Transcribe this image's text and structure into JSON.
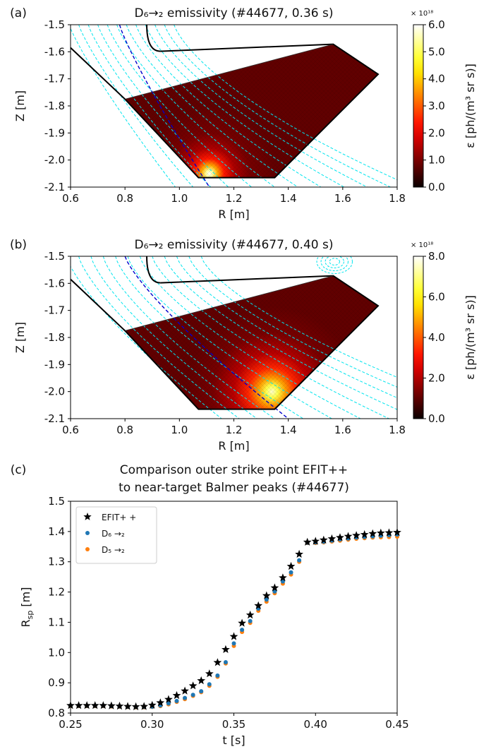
{
  "chart_data": [
    {
      "panel_label": "(a)",
      "type": "heatmap",
      "title": "D₆→₂ emissivity (#44677, 0.36 s)",
      "xlabel": "R [m]",
      "ylabel": "Z [m]",
      "xlim": [
        0.6,
        1.8
      ],
      "ylim": [
        -2.1,
        -1.5
      ],
      "xticks": [
        "0.6",
        "0.8",
        "1.0",
        "1.2",
        "1.4",
        "1.6",
        "1.8"
      ],
      "yticks": [
        "-1.5",
        "-1.6",
        "-1.7",
        "-1.8",
        "-1.9",
        "-2.0",
        "-2.1"
      ],
      "colorbar": {
        "label": "ε [ph/(m³ sr s)]",
        "exponent": "× 10¹⁸",
        "range": [
          0.0,
          6.0
        ],
        "ticks": [
          "0.0",
          "1.0",
          "2.0",
          "3.0",
          "4.0",
          "5.0",
          "6.0"
        ],
        "colormap": "hot"
      },
      "emission_peak": {
        "R": 1.11,
        "Z": -2.05
      },
      "separatrix_color": "#0000cc",
      "flux_surface_color": "#00e5ee"
    },
    {
      "panel_label": "(b)",
      "type": "heatmap",
      "title": "D₆→₂ emissivity (#44677, 0.40 s)",
      "xlabel": "R [m]",
      "ylabel": "Z [m]",
      "xlim": [
        0.6,
        1.8
      ],
      "ylim": [
        -2.1,
        -1.5
      ],
      "xticks": [
        "0.6",
        "0.8",
        "1.0",
        "1.2",
        "1.4",
        "1.6",
        "1.8"
      ],
      "yticks": [
        "-1.5",
        "-1.6",
        "-1.7",
        "-1.8",
        "-1.9",
        "-2.0",
        "-2.1"
      ],
      "colorbar": {
        "label": "ε [ph/(m³ sr s)]",
        "exponent": "× 10¹⁸",
        "range": [
          0.0,
          8.0
        ],
        "ticks": [
          "0.0",
          "2.0",
          "4.0",
          "6.0",
          "8.0"
        ],
        "colormap": "hot"
      },
      "emission_peak": {
        "R": 1.34,
        "Z": -2.0
      },
      "separatrix_color": "#0000cc",
      "flux_surface_color": "#00e5ee"
    },
    {
      "panel_label": "(c)",
      "type": "scatter",
      "title_lines": [
        "Comparison outer strike point EFIT++",
        "to near-target Balmer peaks (#44677)"
      ],
      "xlabel": "t [s]",
      "ylabel": "R",
      "ylabel_sub": "sp",
      "ylabel_unit": " [m]",
      "xlim": [
        0.25,
        0.45
      ],
      "ylim": [
        0.8,
        1.5
      ],
      "xticks": [
        "0.25",
        "0.30",
        "0.35",
        "0.40",
        "0.45"
      ],
      "yticks": [
        "0.8",
        "0.9",
        "1.0",
        "1.1",
        "1.2",
        "1.3",
        "1.4",
        "1.5"
      ],
      "legend_position": "top-left",
      "x": [
        0.25,
        0.255,
        0.26,
        0.265,
        0.27,
        0.275,
        0.28,
        0.285,
        0.29,
        0.295,
        0.3,
        0.305,
        0.31,
        0.315,
        0.32,
        0.325,
        0.33,
        0.335,
        0.34,
        0.345,
        0.35,
        0.355,
        0.36,
        0.365,
        0.37,
        0.375,
        0.38,
        0.385,
        0.39,
        0.395,
        0.4,
        0.405,
        0.41,
        0.415,
        0.42,
        0.425,
        0.43,
        0.435,
        0.44,
        0.445,
        0.45
      ],
      "series": [
        {
          "name": "EFIT+ +",
          "marker": "star",
          "color": "#000000",
          "values": [
            0.825,
            0.825,
            0.825,
            0.825,
            0.825,
            0.824,
            0.823,
            0.822,
            0.821,
            0.822,
            0.826,
            0.834,
            0.845,
            0.858,
            0.873,
            0.89,
            0.907,
            0.93,
            0.967,
            1.01,
            1.053,
            1.097,
            1.124,
            1.155,
            1.188,
            1.214,
            1.247,
            1.285,
            1.325,
            1.365,
            1.368,
            1.372,
            1.376,
            1.38,
            1.384,
            1.387,
            1.39,
            1.393,
            1.395,
            1.396,
            1.397
          ]
        },
        {
          "name": "D₆ →₂",
          "marker": "circle",
          "color": "#1f77b4",
          "values": [
            0.824,
            0.824,
            0.824,
            0.824,
            0.824,
            0.823,
            0.822,
            0.821,
            0.82,
            0.82,
            0.821,
            0.825,
            0.832,
            0.84,
            0.85,
            0.86,
            0.872,
            0.895,
            0.924,
            0.968,
            1.03,
            1.075,
            1.104,
            1.145,
            1.175,
            1.202,
            1.235,
            1.265,
            1.305,
            1.363,
            1.364,
            1.366,
            1.37,
            1.374,
            1.377,
            1.38,
            1.382,
            1.384,
            1.386,
            1.388,
            1.39
          ]
        },
        {
          "name": "D₅ →₂",
          "marker": "circle",
          "color": "#ff7f0e",
          "values": [
            0.823,
            0.823,
            0.823,
            0.823,
            0.823,
            0.822,
            0.821,
            0.82,
            0.819,
            0.819,
            0.82,
            0.823,
            0.829,
            0.837,
            0.846,
            0.857,
            0.869,
            0.89,
            0.92,
            0.964,
            1.022,
            1.068,
            1.098,
            1.138,
            1.168,
            1.196,
            1.228,
            1.258,
            1.3,
            1.362,
            1.362,
            1.364,
            1.367,
            1.37,
            1.373,
            1.376,
            1.378,
            1.38,
            1.381,
            1.382,
            1.383
          ]
        }
      ]
    }
  ]
}
